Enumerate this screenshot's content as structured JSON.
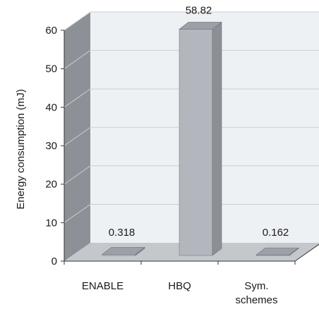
{
  "chart_data": {
    "type": "bar",
    "categories": [
      "ENABLE",
      "HBQ",
      "Sym.\nschemes"
    ],
    "values": [
      0.318,
      58.82,
      0.162
    ],
    "data_labels": [
      "0.318",
      "58.82",
      "0.162"
    ],
    "ylabel": "Energy consumption (mJ)",
    "xlabel": "",
    "ylim": [
      0,
      60
    ],
    "yticks": [
      0,
      10,
      20,
      30,
      40,
      50,
      60
    ],
    "grid": true,
    "style": "3d-column",
    "colors": {
      "bar_front": "#b3b7bd",
      "bar_side": "#8b9097",
      "bar_top": "#9da1a7",
      "back_wall": "#eef1f4",
      "side_wall": "#8c9097",
      "floor": "#c4c8cc",
      "grid": "#c9ced3"
    }
  }
}
